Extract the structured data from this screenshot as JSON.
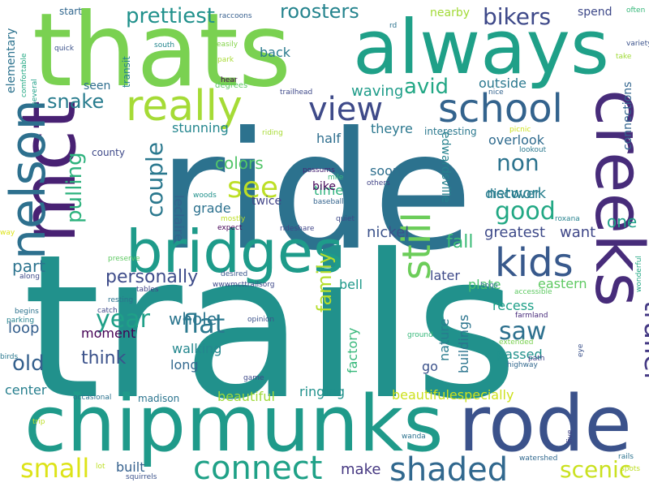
{
  "words": [
    {
      "text": "trails",
      "color": "#21918c"
    },
    {
      "text": "ride",
      "color": "#2c728e"
    },
    {
      "text": "thats",
      "color": "#7ad151"
    },
    {
      "text": "chipmunks",
      "color": "#1f9a8a"
    },
    {
      "text": "always",
      "color": "#1fa088"
    },
    {
      "text": "rode",
      "color": "#3b528b"
    },
    {
      "text": "creeks",
      "color": "#472c7a"
    },
    {
      "text": "mct",
      "color": "#482173"
    },
    {
      "text": "bridges",
      "color": "#1e9b8a"
    },
    {
      "text": "nelson",
      "color": "#2d708e"
    },
    {
      "text": "really",
      "color": "#a5db36"
    },
    {
      "text": "school",
      "color": "#33638d"
    },
    {
      "text": "view",
      "color": "#3e4a89"
    },
    {
      "text": "kids",
      "color": "#38598c"
    },
    {
      "text": "connect",
      "color": "#1fa187"
    },
    {
      "text": "shaded",
      "color": "#31688e"
    },
    {
      "text": "still",
      "color": "#6ccd5a"
    },
    {
      "text": "roosters",
      "color": "#25848e"
    },
    {
      "text": "bikers",
      "color": "#3e4989"
    },
    {
      "text": "trailer",
      "color": "#443983"
    },
    {
      "text": "prettiest",
      "color": "#21918c"
    },
    {
      "text": "avid",
      "color": "#22a785"
    },
    {
      "text": "snake",
      "color": "#287c8e"
    },
    {
      "text": "pulling",
      "color": "#2db27d"
    },
    {
      "text": "couple",
      "color": "#2a788e"
    },
    {
      "text": "see",
      "color": "#bddf26"
    },
    {
      "text": "good",
      "color": "#22a884"
    },
    {
      "text": "non",
      "color": "#2c738e"
    },
    {
      "text": "year",
      "color": "#1fa088"
    },
    {
      "text": "flat",
      "color": "#2a788e"
    },
    {
      "text": "saw",
      "color": "#2d708e"
    },
    {
      "text": "family",
      "color": "#b5de2b"
    },
    {
      "text": "small",
      "color": "#dde318"
    },
    {
      "text": "scenic",
      "color": "#cae11f"
    },
    {
      "text": "old",
      "color": "#34608d"
    },
    {
      "text": "think",
      "color": "#3b528b"
    },
    {
      "text": "personally",
      "color": "#3e4c8a"
    },
    {
      "text": "part",
      "color": "#2c738e"
    },
    {
      "text": "one",
      "color": "#1fa088"
    },
    {
      "text": "time",
      "color": "#2db27d"
    },
    {
      "text": "colors",
      "color": "#52c569"
    },
    {
      "text": "network",
      "color": "#277f8e"
    },
    {
      "text": "fall",
      "color": "#3aba76"
    },
    {
      "text": "walking",
      "color": "#24878e"
    },
    {
      "text": "whole",
      "color": "#2b758e"
    },
    {
      "text": "waving",
      "color": "#1e9c89"
    },
    {
      "text": "stunning",
      "color": "#24868e"
    },
    {
      "text": "outside",
      "color": "#2a788e"
    },
    {
      "text": "nickel",
      "color": "#3b528b"
    },
    {
      "text": "greatest",
      "color": "#3e4a89"
    },
    {
      "text": "want",
      "color": "#3f4788"
    },
    {
      "text": "loop",
      "color": "#355f8d"
    },
    {
      "text": "moment",
      "color": "#440154"
    },
    {
      "text": "half",
      "color": "#2e6e8e"
    },
    {
      "text": "theyre",
      "color": "#2a778e"
    },
    {
      "text": "back",
      "color": "#297a8e"
    },
    {
      "text": "grade",
      "color": "#2c718e"
    },
    {
      "text": "leclaire",
      "color": "#33638d"
    },
    {
      "text": "edwardsville",
      "color": "#26828e"
    },
    {
      "text": "plate",
      "color": "#4ac16d"
    },
    {
      "text": "recess",
      "color": "#1fa088"
    },
    {
      "text": "bell",
      "color": "#1f998a"
    },
    {
      "text": "soon",
      "color": "#2e6f8e"
    },
    {
      "text": "discover",
      "color": "#297b8e"
    },
    {
      "text": "overlook",
      "color": "#2f6b8e"
    },
    {
      "text": "eastern",
      "color": "#5ec962"
    },
    {
      "text": "later",
      "color": "#3e4a89"
    },
    {
      "text": "nature",
      "color": "#287c8e"
    },
    {
      "text": "buildings",
      "color": "#2b748e"
    },
    {
      "text": "factory",
      "color": "#35b779"
    },
    {
      "text": "passed",
      "color": "#21918c"
    },
    {
      "text": "go",
      "color": "#3b528b"
    },
    {
      "text": "beautiful",
      "color": "#a0da39"
    },
    {
      "text": "beautifulespecially",
      "color": "#cde11d"
    },
    {
      "text": "ringing",
      "color": "#21918c"
    },
    {
      "text": "make",
      "color": "#453781"
    },
    {
      "text": "built",
      "color": "#34608d"
    },
    {
      "text": "long",
      "color": "#31688e"
    },
    {
      "text": "center",
      "color": "#277f8e"
    },
    {
      "text": "bike",
      "color": "#46075a"
    },
    {
      "text": "twice",
      "color": "#414487"
    },
    {
      "text": "seen",
      "color": "#2e6e8e"
    },
    {
      "text": "county",
      "color": "#3e4989"
    },
    {
      "text": "nearby",
      "color": "#a2da37"
    },
    {
      "text": "spend",
      "color": "#3e4989"
    },
    {
      "text": "start",
      "color": "#31678e"
    },
    {
      "text": "elementary",
      "color": "#2c728e"
    },
    {
      "text": "transit",
      "color": "#25848e"
    },
    {
      "text": "connections",
      "color": "#32658e"
    },
    {
      "text": "interesting",
      "color": "#2a788e"
    },
    {
      "text": "madison",
      "color": "#2b748e"
    },
    {
      "text": "trailhead",
      "color": "#3e4989"
    },
    {
      "text": "comfortable",
      "color": "#23a983"
    },
    {
      "text": "quick",
      "color": "#3b528b"
    },
    {
      "text": "south",
      "color": "#24868e"
    },
    {
      "text": "easily",
      "color": "#84d44b"
    },
    {
      "text": "park",
      "color": "#a8db34"
    },
    {
      "text": "degrees",
      "color": "#5ec962"
    },
    {
      "text": "hear",
      "color": "#440154"
    },
    {
      "text": "raccoons",
      "color": "#355e8d"
    },
    {
      "text": "rd",
      "color": "#2c728e"
    },
    {
      "text": "often",
      "color": "#35b779"
    },
    {
      "text": "variety",
      "color": "#3b528b"
    },
    {
      "text": "take",
      "color": "#a0da39"
    },
    {
      "text": "several",
      "color": "#1fa088"
    },
    {
      "text": "nice",
      "color": "#33638d"
    },
    {
      "text": "riding",
      "color": "#a8db34"
    },
    {
      "text": "possums",
      "color": "#482475"
    },
    {
      "text": "mile",
      "color": "#35b779"
    },
    {
      "text": "others",
      "color": "#414487"
    },
    {
      "text": "picnic",
      "color": "#cde11d"
    },
    {
      "text": "lookout",
      "color": "#2a788e"
    },
    {
      "text": "woods",
      "color": "#21918c"
    },
    {
      "text": "baseball",
      "color": "#33638d"
    },
    {
      "text": "quiet",
      "color": "#3e4a89"
    },
    {
      "text": "mostly",
      "color": "#bddf26"
    },
    {
      "text": "expect",
      "color": "#440154"
    },
    {
      "text": "rideshare",
      "color": "#404688"
    },
    {
      "text": "roxana",
      "color": "#26828e"
    },
    {
      "text": "way",
      "color": "#dde318"
    },
    {
      "text": "preserve",
      "color": "#5ec962"
    },
    {
      "text": "along",
      "color": "#3e4a89"
    },
    {
      "text": "desired",
      "color": "#39568c"
    },
    {
      "text": "wwwmcttrailsorg",
      "color": "#3e4989"
    },
    {
      "text": "tables",
      "color": "#414487"
    },
    {
      "text": "hogs",
      "color": "#2c728e"
    },
    {
      "text": "accessible",
      "color": "#5ec962"
    },
    {
      "text": "wonderful",
      "color": "#22a884"
    },
    {
      "text": "catch",
      "color": "#3e4989"
    },
    {
      "text": "begins",
      "color": "#2c728e"
    },
    {
      "text": "resting",
      "color": "#2c728e"
    },
    {
      "text": "opinion",
      "color": "#3b528b"
    },
    {
      "text": "farmland",
      "color": "#472a7a"
    },
    {
      "text": "parking",
      "color": "#26828e"
    },
    {
      "text": "birds",
      "color": "#2a788e"
    },
    {
      "text": "ground",
      "color": "#35b779"
    },
    {
      "text": "extended",
      "color": "#7ad151"
    },
    {
      "text": "path",
      "color": "#414487"
    },
    {
      "text": "eye",
      "color": "#3b528b"
    },
    {
      "text": "highway",
      "color": "#31688e"
    },
    {
      "text": "game",
      "color": "#3e4989"
    },
    {
      "text": "occasional",
      "color": "#2c728e"
    },
    {
      "text": "trip",
      "color": "#bddf26"
    },
    {
      "text": "wanda",
      "color": "#2c728e"
    },
    {
      "text": "five",
      "color": "#414487"
    },
    {
      "text": "watershed",
      "color": "#31688e"
    },
    {
      "text": "lot",
      "color": "#bddf26"
    },
    {
      "text": "squirrels",
      "color": "#3b528b"
    },
    {
      "text": "spots",
      "color": "#bddf26"
    },
    {
      "text": "rails",
      "color": "#2c728e"
    }
  ]
}
